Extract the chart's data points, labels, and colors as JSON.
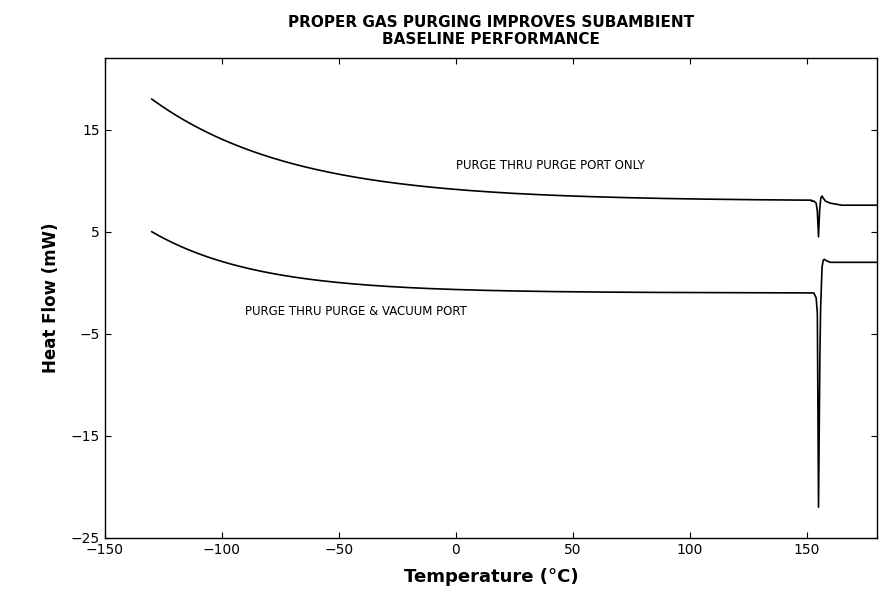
{
  "title_line1": "PROPER GAS PURGING IMPROVES SUBAMBIENT",
  "title_line2": "BASELINE PERFORMANCE",
  "xlabel": "Temperature (°C)",
  "ylabel": "Heat Flow (mW)",
  "xlim": [
    -150,
    180
  ],
  "ylim": [
    -25,
    22
  ],
  "xticks": [
    -150,
    -100,
    -50,
    0,
    50,
    100,
    150
  ],
  "yticks": [
    -25,
    -15,
    -5,
    5,
    15
  ],
  "label_purge_only": "PURGE THRU PURGE PORT ONLY",
  "label_purge_vacuum": "PURGE THRU PURGE & VACUUM PORT",
  "background_color": "#ffffff",
  "line_color": "#000000"
}
